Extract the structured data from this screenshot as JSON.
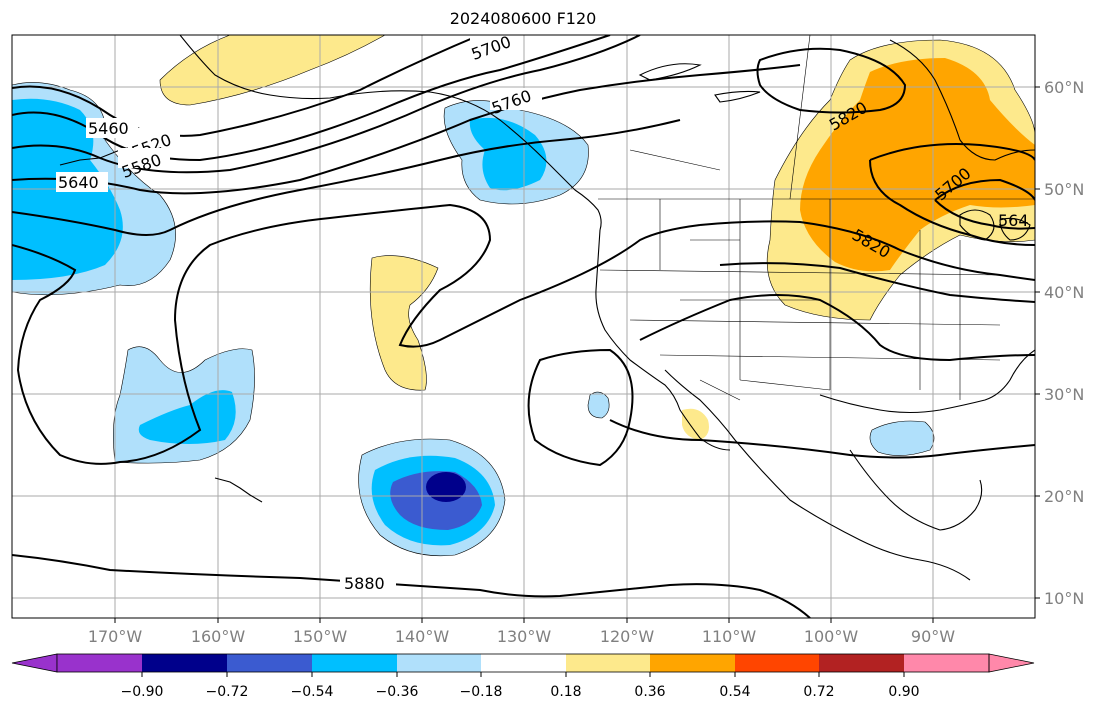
{
  "title": "2024080600 F120",
  "longitude_labels": [
    "170°W",
    "160°W",
    "150°W",
    "140°W",
    "130°W",
    "120°W",
    "110°W",
    "100°W",
    "90°W"
  ],
  "latitude_labels": [
    "60°N",
    "50°N",
    "40°N",
    "30°N",
    "20°N",
    "10°N"
  ],
  "contour_labels": [
    "5700",
    "5760",
    "5460",
    "5520",
    "5580",
    "5640",
    "5820",
    "5700",
    "564",
    "5820",
    "5880"
  ],
  "colorbar": {
    "tick_labels": [
      "−0.90",
      "−0.72",
      "−0.54",
      "−0.36",
      "−0.18",
      "0.18",
      "0.36",
      "0.54",
      "0.72",
      "0.90"
    ],
    "colors": [
      "#9932cc",
      "#00008b",
      "#3b5bd0",
      "#00bfff",
      "#b0e0fb",
      "#ffffff",
      "#fde98c",
      "#ffa500",
      "#ff4500",
      "#b22222",
      "#ff88aa"
    ]
  },
  "colors": {
    "light_blue": "#b0e0fb",
    "blue": "#00bfff",
    "medium_blue": "#3b5bd0",
    "navy": "#00008b",
    "light_yellow": "#fde98c",
    "orange": "#ffa500",
    "grid": "#aaaaaa"
  }
}
